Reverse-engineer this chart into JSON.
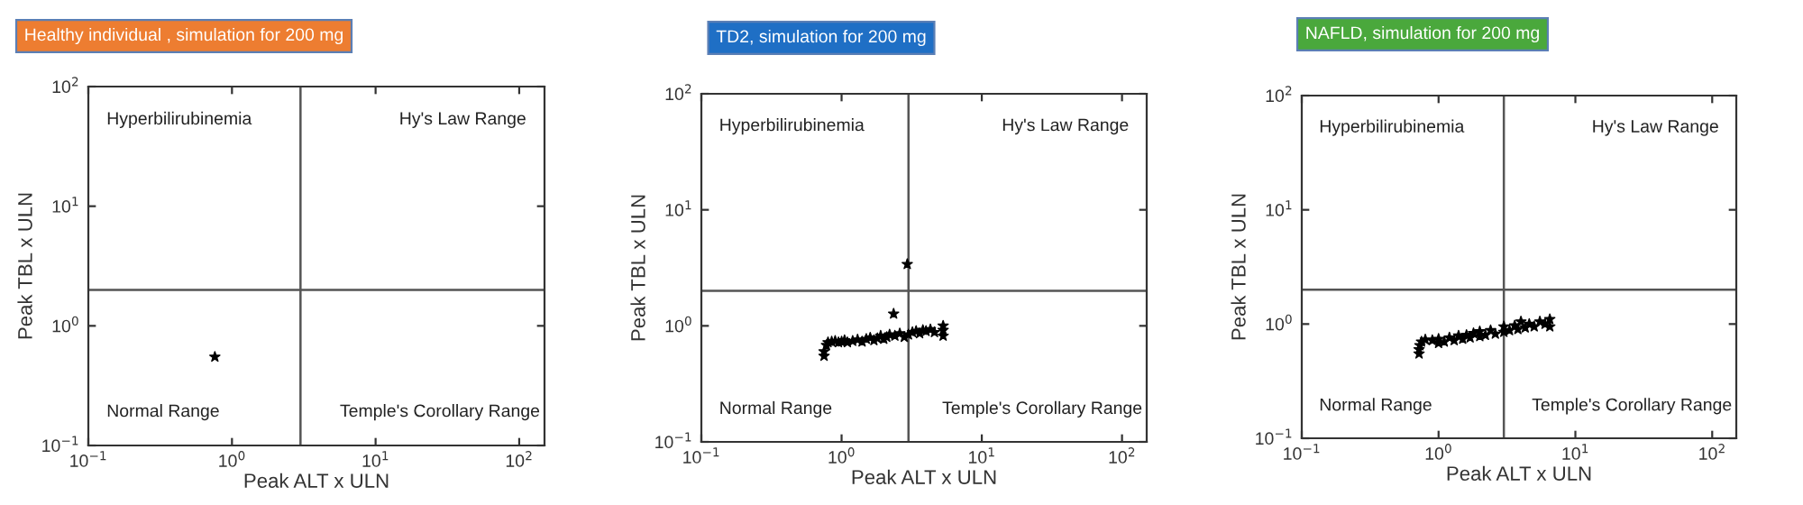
{
  "chart_data": [
    {
      "type": "scatter",
      "title": "Healthy individual , simulation for 200 mg",
      "xlabel": "Peak ALT x ULN",
      "ylabel": "Peak TBL x ULN",
      "log": "xy",
      "marker": "star",
      "grid": false,
      "xlim": [
        0.1,
        150
      ],
      "ylim": [
        0.1,
        100
      ],
      "xticks": [
        {
          "value": 0.1,
          "label": "10$^{−1}$"
        },
        {
          "value": 1,
          "label": "10$^{0}$"
        },
        {
          "value": 10,
          "label": "10$^{1}$"
        },
        {
          "value": 100,
          "label": "10$^{2}$"
        }
      ],
      "yticks": [
        {
          "value": 0.1,
          "label": "10$^{−1}$"
        },
        {
          "value": 1,
          "label": "10$^{0}$"
        },
        {
          "value": 10,
          "label": "10$^{1}$"
        },
        {
          "value": 100,
          "label": "10$^{2}$"
        }
      ],
      "ref_lines": [
        {
          "axis": "x",
          "value": 3,
          "color": "#555555"
        },
        {
          "axis": "y",
          "value": 2,
          "color": "#555555"
        }
      ],
      "annotations": [
        "Hyperbilirubinemia",
        "Hy's Law Range",
        "Normal Range",
        "Temple's Corollary Range"
      ],
      "series": [
        {
          "color": "#000000",
          "x": [
            0.76
          ],
          "values": [
            0.55
          ]
        }
      ]
    },
    {
      "type": "scatter",
      "title": "TD2, simulation for 200 mg",
      "xlabel": "Peak ALT x ULN",
      "ylabel": "Peak TBL x ULN",
      "log": "xy",
      "marker": "star",
      "grid": false,
      "xlim": [
        0.1,
        150
      ],
      "ylim": [
        0.1,
        100
      ],
      "xticks": [
        {
          "value": 0.1,
          "label": "10$^{−1}$"
        },
        {
          "value": 1,
          "label": "10$^{0}$"
        },
        {
          "value": 10,
          "label": "10$^{1}$"
        },
        {
          "value": 100,
          "label": "10$^{2}$"
        }
      ],
      "yticks": [
        {
          "value": 0.1,
          "label": "10$^{−1}$"
        },
        {
          "value": 1,
          "label": "10$^{0}$"
        },
        {
          "value": 10,
          "label": "10$^{1}$"
        },
        {
          "value": 100,
          "label": "10$^{2}$"
        }
      ],
      "ref_lines": [
        {
          "axis": "x",
          "value": 3,
          "color": "#555555"
        },
        {
          "axis": "y",
          "value": 2,
          "color": "#555555"
        }
      ],
      "annotations": [
        "Hyperbilirubinemia",
        "Hy's Law Range",
        "Normal Range",
        "Temple's Corollary Range"
      ],
      "series": [
        {
          "color": "#000000",
          "x": [
            0.75,
            0.75,
            0.78,
            0.8,
            0.85,
            0.9,
            0.95,
            1.0,
            1.05,
            1.1,
            1.2,
            1.3,
            1.4,
            1.5,
            1.6,
            1.7,
            1.8,
            1.9,
            2.0,
            2.1,
            2.2,
            2.35,
            2.4,
            2.6,
            2.8,
            2.94,
            3.0,
            3.2,
            3.4,
            3.6,
            3.8,
            4.0,
            4.3,
            4.6,
            5.3,
            5.3,
            5.3
          ],
          "values": [
            0.55,
            0.6,
            0.68,
            0.72,
            0.73,
            0.74,
            0.72,
            0.73,
            0.75,
            0.72,
            0.74,
            0.76,
            0.73,
            0.77,
            0.79,
            0.75,
            0.78,
            0.82,
            0.77,
            0.8,
            0.84,
            1.27,
            0.82,
            0.86,
            0.8,
            3.4,
            0.84,
            0.88,
            0.9,
            0.86,
            0.92,
            0.9,
            0.93,
            0.88,
            1.0,
            0.92,
            0.82
          ]
        }
      ]
    },
    {
      "type": "scatter",
      "title": "NAFLD, simulation for 200 mg",
      "xlabel": "Peak ALT x ULN",
      "ylabel": "Peak TBL x ULN",
      "log": "xy",
      "marker": "star",
      "grid": false,
      "xlim": [
        0.1,
        150
      ],
      "ylim": [
        0.1,
        100
      ],
      "xticks": [
        {
          "value": 0.1,
          "label": "10$^{−1}$"
        },
        {
          "value": 1,
          "label": "10$^{0}$"
        },
        {
          "value": 10,
          "label": "10$^{1}$"
        },
        {
          "value": 100,
          "label": "10$^{2}$"
        }
      ],
      "yticks": [
        {
          "value": 0.1,
          "label": "10$^{−1}$"
        },
        {
          "value": 1,
          "label": "10$^{0}$"
        },
        {
          "value": 10,
          "label": "10$^{1}$"
        },
        {
          "value": 100,
          "label": "10$^{2}$"
        }
      ],
      "ref_lines": [
        {
          "axis": "x",
          "value": 3,
          "color": "#555555"
        },
        {
          "axis": "y",
          "value": 2,
          "color": "#555555"
        }
      ],
      "annotations": [
        "Hyperbilirubinemia",
        "Hy's Law Range",
        "Normal Range",
        "Temple's Corollary Range"
      ],
      "series": [
        {
          "color": "#000000",
          "x": [
            0.72,
            0.72,
            0.73,
            0.75,
            0.8,
            0.9,
            1.0,
            1.0,
            1.1,
            1.2,
            1.3,
            1.4,
            1.5,
            1.6,
            1.7,
            1.8,
            2.0,
            2.0,
            2.2,
            2.4,
            2.6,
            3.0,
            3.0,
            3.3,
            3.6,
            3.8,
            4.0,
            4.3,
            4.6,
            5.0,
            5.5,
            6.0,
            6.5,
            6.5
          ],
          "values": [
            0.55,
            0.6,
            0.65,
            0.7,
            0.73,
            0.72,
            0.74,
            0.68,
            0.7,
            0.76,
            0.72,
            0.79,
            0.74,
            0.8,
            0.76,
            0.83,
            0.78,
            0.86,
            0.8,
            0.88,
            0.82,
            0.85,
            0.95,
            0.88,
            0.97,
            0.9,
            1.05,
            0.93,
            1.0,
            0.95,
            1.05,
            1.0,
            1.1,
            0.95
          ]
        }
      ]
    }
  ]
}
